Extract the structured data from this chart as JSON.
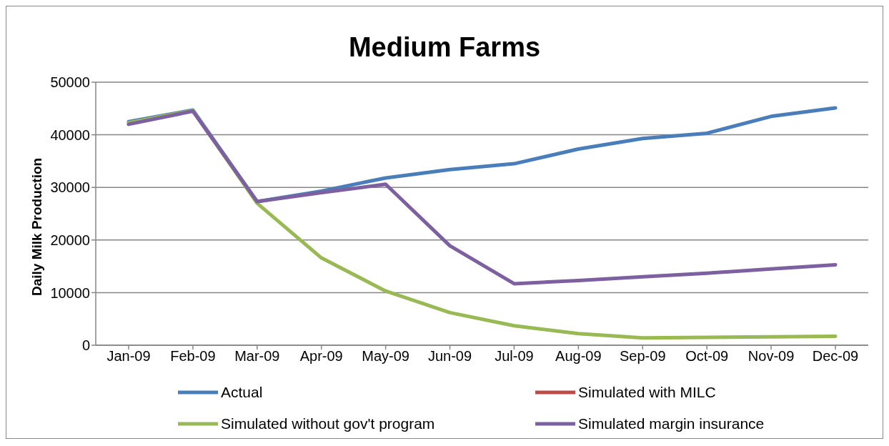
{
  "chart_data": {
    "type": "line",
    "title": "Medium Farms",
    "ylabel": "Daily Milk Production",
    "categories": [
      "Jan-09",
      "Feb-09",
      "Mar-09",
      "Apr-09",
      "May-09",
      "Jun-09",
      "Jul-09",
      "Aug-09",
      "Sep-09",
      "Oct-09",
      "Nov-09",
      "Dec-09"
    ],
    "series": [
      {
        "name": "Actual",
        "color": "#4a7ebb",
        "values": [
          42500,
          44700,
          27300,
          29300,
          31800,
          33400,
          34500,
          37300,
          39300,
          40300,
          43500,
          45100
        ]
      },
      {
        "name": "Simulated with MILC",
        "color": "#be4b48",
        "values": [
          null,
          null,
          null,
          null,
          null,
          null,
          null,
          null,
          null,
          null,
          null,
          null
        ]
      },
      {
        "name": "Simulated without gov't program",
        "color": "#98b954",
        "values": [
          42300,
          44600,
          27000,
          16600,
          10300,
          6200,
          3700,
          2200,
          1400,
          1500,
          1600,
          1700
        ]
      },
      {
        "name": "Simulated margin insurance",
        "color": "#7d60a0",
        "values": [
          42000,
          44500,
          27300,
          29000,
          30600,
          18900,
          11700,
          12300,
          13000,
          13700,
          14500,
          15300
        ]
      }
    ],
    "ylim": [
      0,
      50000
    ],
    "yticks": [
      0,
      10000,
      20000,
      30000,
      40000,
      50000
    ],
    "grid": "y",
    "legend": "bottom",
    "marker": "none",
    "line_style": "solid"
  }
}
